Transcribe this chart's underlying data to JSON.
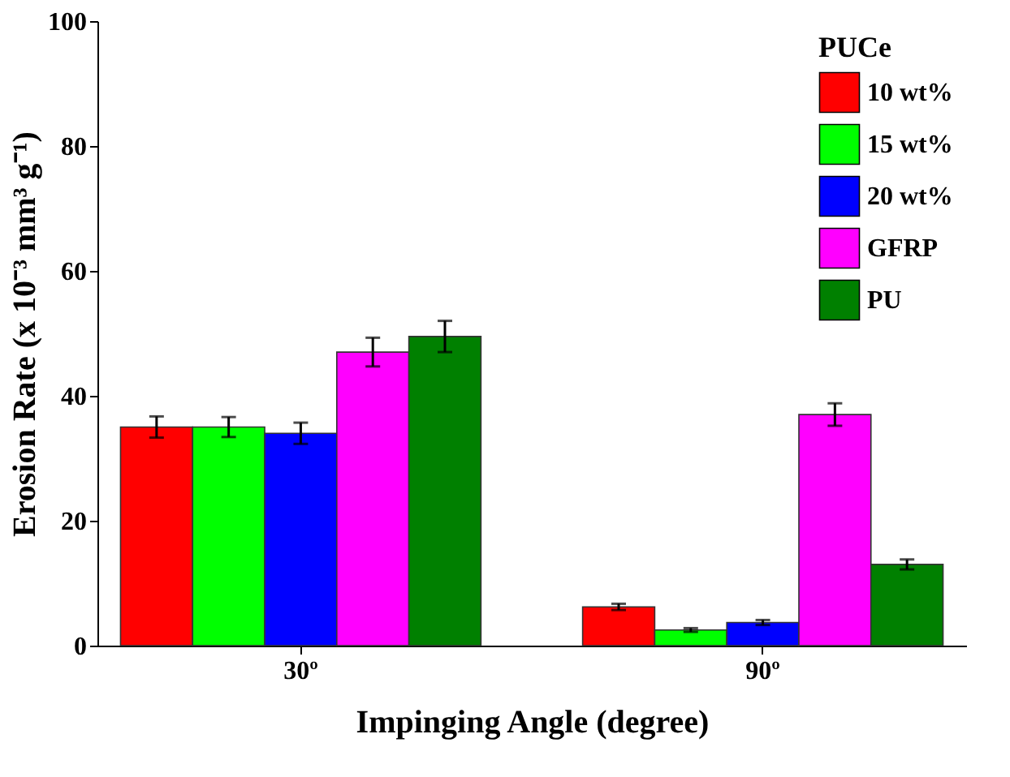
{
  "chart_data": {
    "type": "bar",
    "xlabel": "Impinging Angle (degree)",
    "ylabel": "Erosion Rate (x 10⁻³ mm³ g⁻¹)",
    "legend_title": "PUCe",
    "categories": [
      "30º",
      "90º"
    ],
    "series": [
      {
        "name": "10 wt%",
        "color": "#ff0000",
        "values": [
          35,
          6.2
        ],
        "errors": [
          1.7,
          0.5
        ]
      },
      {
        "name": "15 wt%",
        "color": "#00ff00",
        "values": [
          35,
          2.5
        ],
        "errors": [
          1.6,
          0.3
        ]
      },
      {
        "name": "20 wt%",
        "color": "#0000ff",
        "values": [
          34,
          3.7
        ],
        "errors": [
          1.7,
          0.4
        ]
      },
      {
        "name": "GFRP",
        "color": "#ff00ff",
        "values": [
          47,
          37
        ],
        "errors": [
          2.3,
          1.8
        ]
      },
      {
        "name": "PU",
        "color": "#008000",
        "values": [
          49.5,
          13
        ],
        "errors": [
          2.5,
          0.8
        ]
      }
    ],
    "ylim": [
      0,
      100
    ],
    "yticks": [
      0,
      20,
      40,
      60,
      80,
      100
    ],
    "grid": false,
    "legend": "top right"
  }
}
